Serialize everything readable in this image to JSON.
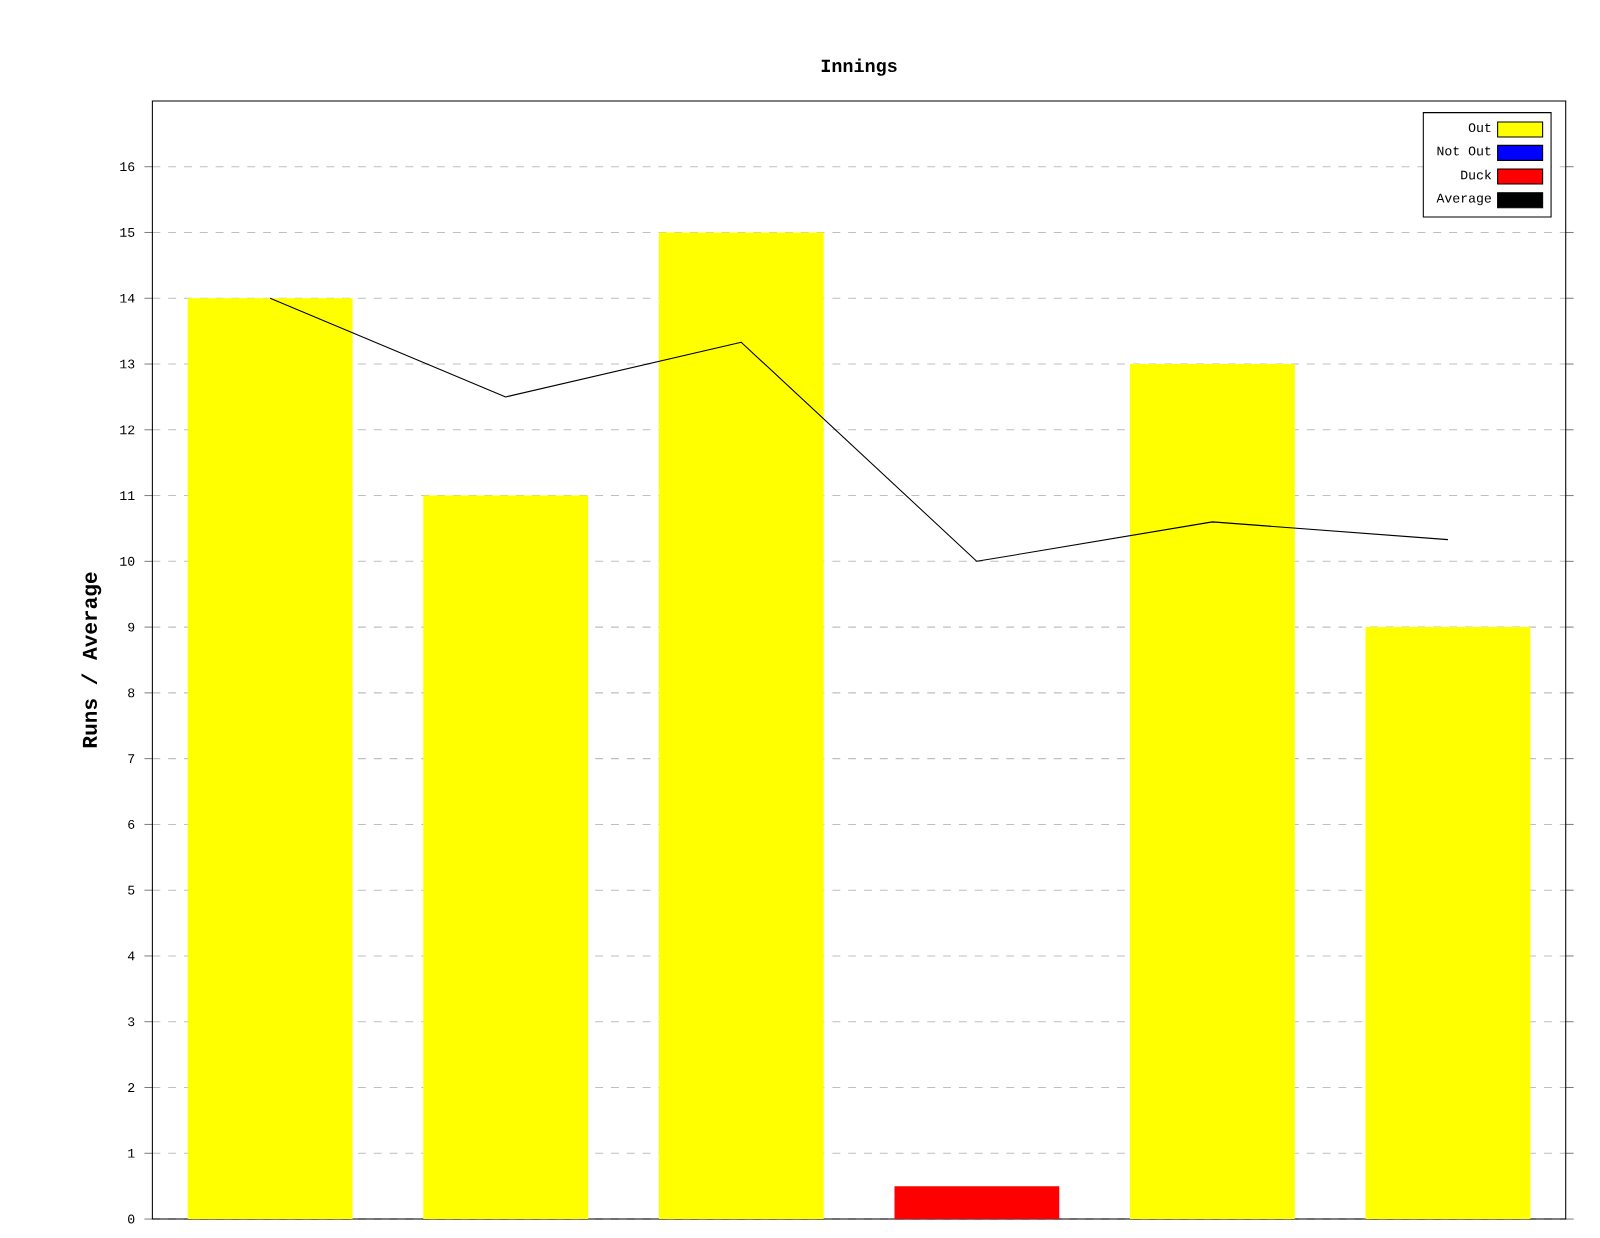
{
  "chart_data": {
    "type": "bar",
    "title": "Innings",
    "ylabel": "Runs / Average",
    "categories": [
      null,
      null,
      null,
      null,
      null,
      null
    ],
    "series": [
      {
        "name": "Average",
        "type": "line",
        "color": "#000000",
        "values": [
          14,
          12.5,
          13.33,
          10,
          10.6,
          10.33
        ]
      },
      {
        "name": "Out",
        "color": "#ffff00",
        "values": [
          14,
          11,
          15,
          null,
          13,
          9
        ]
      },
      {
        "name": "Not Out",
        "color": "#0000ff",
        "values": [
          null,
          null,
          null,
          null,
          null,
          null
        ]
      },
      {
        "name": "Duck",
        "color": "#ff0000",
        "values": [
          null,
          null,
          null,
          0.5,
          null,
          null
        ]
      }
    ],
    "ylim": [
      0,
      17
    ],
    "yticks": [
      0,
      1,
      2,
      3,
      4,
      5,
      6,
      7,
      8,
      9,
      10,
      11,
      12,
      13,
      14,
      15,
      16
    ],
    "grid": "y",
    "legend": "top right",
    "marker": "none"
  }
}
